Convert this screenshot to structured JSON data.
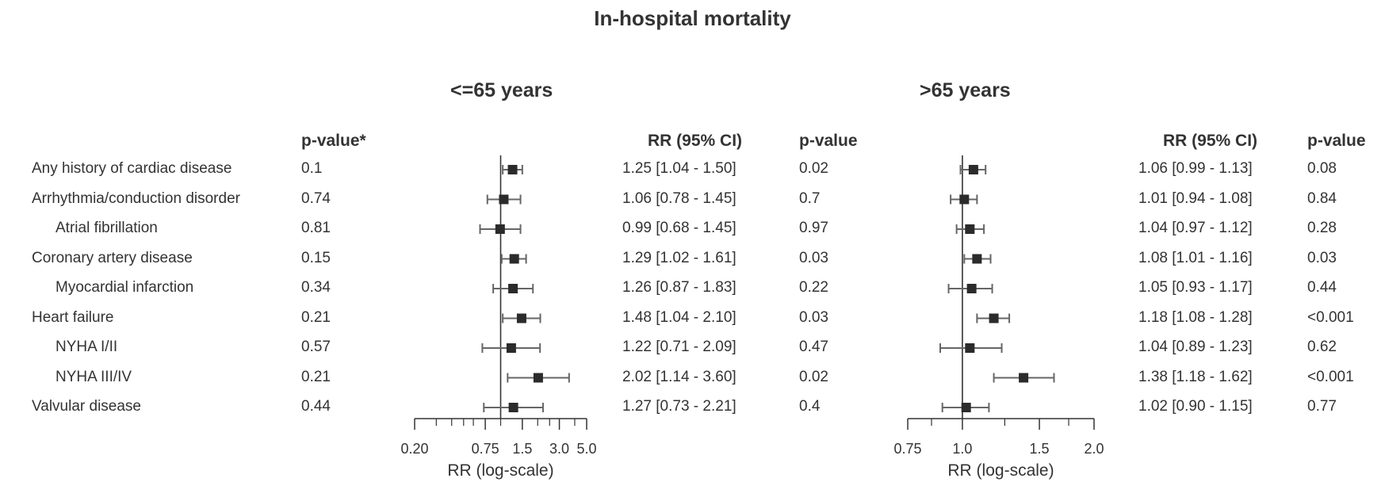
{
  "title": "In-hospital mortality",
  "headers": {
    "pvalue_interaction": "p-value*",
    "rr_ci": "RR (95% CI)",
    "pvalue": "p-value"
  },
  "chart_data": [
    {
      "type": "forest",
      "title": ">65 years",
      "xlabel": "RR (log-scale)",
      "x_scale": "log",
      "xlim": [
        0.75,
        2.0
      ],
      "xticks": [
        "0.75",
        "1.0",
        "1.5",
        "2.0"
      ],
      "reference_line": 1.0,
      "rows": [
        {
          "label": "Any history of cardiac disease",
          "indent": false,
          "rr": 1.06,
          "lo": 0.99,
          "hi": 1.13,
          "ci_text": "1.06 [0.99 - 1.13]",
          "p": "0.08"
        },
        {
          "label": "Arrhythmia/conduction disorder",
          "indent": false,
          "rr": 1.01,
          "lo": 0.94,
          "hi": 1.08,
          "ci_text": "1.01 [0.94 - 1.08]",
          "p": "0.84"
        },
        {
          "label": "Atrial fibrillation",
          "indent": true,
          "rr": 1.04,
          "lo": 0.97,
          "hi": 1.12,
          "ci_text": "1.04 [0.97 - 1.12]",
          "p": "0.28"
        },
        {
          "label": "Coronary artery disease",
          "indent": false,
          "rr": 1.08,
          "lo": 1.01,
          "hi": 1.16,
          "ci_text": "1.08 [1.01 - 1.16]",
          "p": "0.03"
        },
        {
          "label": "Myocardial infarction",
          "indent": true,
          "rr": 1.05,
          "lo": 0.93,
          "hi": 1.17,
          "ci_text": "1.05 [0.93 - 1.17]",
          "p": "0.44"
        },
        {
          "label": "Heart failure",
          "indent": false,
          "rr": 1.18,
          "lo": 1.08,
          "hi": 1.28,
          "ci_text": "1.18 [1.08 - 1.28]",
          "p": "<0.001"
        },
        {
          "label": "NYHA I/II",
          "indent": true,
          "rr": 1.04,
          "lo": 0.89,
          "hi": 1.23,
          "ci_text": "1.04 [0.89 - 1.23]",
          "p": "0.62"
        },
        {
          "label": "NYHA III/IV",
          "indent": true,
          "rr": 1.38,
          "lo": 1.18,
          "hi": 1.62,
          "ci_text": "1.38 [1.18 - 1.62]",
          "p": "<0.001"
        },
        {
          "label": "Valvular disease",
          "indent": false,
          "rr": 1.02,
          "lo": 0.9,
          "hi": 1.15,
          "ci_text": "1.02 [0.90 - 1.15]",
          "p": "0.77"
        }
      ]
    },
    {
      "type": "forest",
      "title": "<=65 years",
      "xlabel": "RR (log-scale)",
      "x_scale": "log",
      "xlim": [
        0.2,
        5.0
      ],
      "xticks": [
        "0.20",
        "0.75",
        "1.5",
        "3.0",
        "5.0"
      ],
      "reference_line": 1.0,
      "rows": [
        {
          "label": "Any history of cardiac disease",
          "indent": false,
          "p_interaction": "0.1",
          "rr": 1.25,
          "lo": 1.04,
          "hi": 1.5,
          "ci_text": "1.25 [1.04 - 1.50]",
          "p": "0.02"
        },
        {
          "label": "Arrhythmia/conduction disorder",
          "indent": false,
          "p_interaction": "0.74",
          "rr": 1.06,
          "lo": 0.78,
          "hi": 1.45,
          "ci_text": "1.06 [0.78 - 1.45]",
          "p": "0.7"
        },
        {
          "label": "Atrial fibrillation",
          "indent": true,
          "p_interaction": "0.81",
          "rr": 0.99,
          "lo": 0.68,
          "hi": 1.45,
          "ci_text": "0.99 [0.68 - 1.45]",
          "p": "0.97"
        },
        {
          "label": "Coronary artery disease",
          "indent": false,
          "p_interaction": "0.15",
          "rr": 1.29,
          "lo": 1.02,
          "hi": 1.61,
          "ci_text": "1.29 [1.02 - 1.61]",
          "p": "0.03"
        },
        {
          "label": "Myocardial infarction",
          "indent": true,
          "p_interaction": "0.34",
          "rr": 1.26,
          "lo": 0.87,
          "hi": 1.83,
          "ci_text": "1.26 [0.87 - 1.83]",
          "p": "0.22"
        },
        {
          "label": "Heart failure",
          "indent": false,
          "p_interaction": "0.21",
          "rr": 1.48,
          "lo": 1.04,
          "hi": 2.1,
          "ci_text": "1.48 [1.04 - 2.10]",
          "p": "0.03"
        },
        {
          "label": "NYHA I/II",
          "indent": true,
          "p_interaction": "0.57",
          "rr": 1.22,
          "lo": 0.71,
          "hi": 2.09,
          "ci_text": "1.22 [0.71 - 2.09]",
          "p": "0.47"
        },
        {
          "label": "NYHA III/IV",
          "indent": true,
          "p_interaction": "0.21",
          "rr": 2.02,
          "lo": 1.14,
          "hi": 3.6,
          "ci_text": "2.02 [1.14 - 3.60]",
          "p": "0.02"
        },
        {
          "label": "Valvular disease",
          "indent": false,
          "p_interaction": "0.44",
          "rr": 1.27,
          "lo": 0.73,
          "hi": 2.21,
          "ci_text": "1.27 [0.73 - 2.21]",
          "p": "0.4"
        }
      ]
    }
  ],
  "colors": {
    "text": "#333333",
    "marker": "#2b2b2b",
    "ci_line": "#666666",
    "axis": "#333333"
  }
}
